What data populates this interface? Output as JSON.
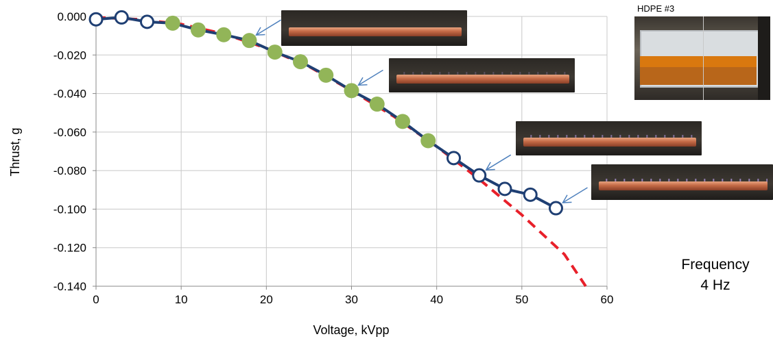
{
  "chart_data": {
    "type": "line",
    "xlabel": "Voltage, kVpp",
    "ylabel": "Thrust, g",
    "xlim": [
      0,
      60
    ],
    "ylim": [
      -0.14,
      0.0
    ],
    "x_ticks": [
      "0",
      "10",
      "20",
      "30",
      "40",
      "50",
      "60"
    ],
    "y_ticks": [
      "0.000",
      "-0.020",
      "-0.040",
      "-0.060",
      "-0.080",
      "-0.100",
      "-0.120",
      "-0.140"
    ],
    "grid": true,
    "series": [
      {
        "style": "line-open-circles",
        "color": "#1f3f73",
        "x": [
          0,
          3,
          6,
          9,
          12,
          15,
          18,
          21,
          24,
          27,
          30,
          33,
          36,
          39,
          42,
          45,
          48,
          51,
          54
        ],
        "y": [
          -0.0015,
          -0.0005,
          -0.0028,
          -0.0035,
          -0.007,
          -0.0095,
          -0.0125,
          -0.0185,
          -0.0235,
          -0.0305,
          -0.0385,
          -0.0455,
          -0.0545,
          -0.0645,
          -0.0735,
          -0.0825,
          -0.0895,
          -0.0925,
          -0.0995
        ]
      },
      {
        "style": "filled-markers",
        "color": "#92b558",
        "x": [
          9,
          12,
          15,
          18,
          21,
          24,
          27,
          30,
          33,
          36,
          39
        ],
        "y": [
          -0.0035,
          -0.007,
          -0.0095,
          -0.0125,
          -0.0185,
          -0.0235,
          -0.0305,
          -0.0385,
          -0.0455,
          -0.0545,
          -0.0645
        ]
      },
      {
        "style": "dashed-fit",
        "color": "#e8202a",
        "x": [
          0,
          5,
          10,
          15,
          20,
          25,
          30,
          35,
          40,
          45,
          50,
          55,
          57.5
        ],
        "y": [
          -0.0005,
          -0.0015,
          -0.004,
          -0.009,
          -0.0165,
          -0.026,
          -0.0385,
          -0.052,
          -0.0675,
          -0.0845,
          -0.103,
          -0.1235,
          -0.14
        ]
      }
    ],
    "annotations": {
      "arrows_at_x": [
        18,
        30,
        45,
        54
      ]
    }
  },
  "labels": {
    "sample": "HDPE #3",
    "frequency_line1": "Frequency",
    "frequency_line2": "4 Hz"
  }
}
